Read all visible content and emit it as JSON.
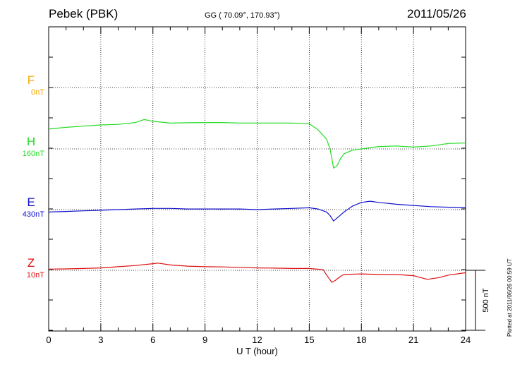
{
  "header": {
    "station": "Pebek (PBK)",
    "coords": "GG ( 70.09°, 170.93°)",
    "date": "2011/05/26"
  },
  "footer": {
    "plotted": "Plotted at 2011/06/26 00:59 UT"
  },
  "colors": {
    "F": "#f5a800",
    "H": "#22dd22",
    "E": "#1010cc",
    "Z": "#dd1010",
    "axis": "#000000"
  },
  "chart_data": {
    "type": "line",
    "xlabel": "U T (hour)",
    "xlim": [
      0,
      24
    ],
    "xticks": [
      0,
      3,
      6,
      9,
      12,
      15,
      18,
      21,
      24
    ],
    "scale_bar": {
      "label": "500 nT",
      "value_nT": 500
    },
    "grid": true,
    "series": [
      {
        "name": "F",
        "baseline_label": "0nT",
        "color": "#f5a800",
        "x": [],
        "y": []
      },
      {
        "name": "H",
        "baseline_label": "160nT",
        "color": "#22dd22",
        "x": [
          0,
          1,
          2,
          3,
          4,
          5,
          5.5,
          6,
          7,
          8,
          9,
          10,
          11,
          12,
          13,
          14,
          15,
          15.5,
          16,
          16.2,
          16.4,
          16.6,
          16.8,
          17,
          17.5,
          18,
          19,
          20,
          21,
          22,
          23,
          24
        ],
        "y": [
          165,
          180,
          190,
          200,
          205,
          220,
          245,
          230,
          215,
          218,
          220,
          220,
          215,
          215,
          215,
          215,
          210,
          160,
          80,
          0,
          -160,
          -140,
          -80,
          -40,
          -10,
          0,
          20,
          25,
          15,
          25,
          45,
          50
        ]
      },
      {
        "name": "E",
        "baseline_label": "430nT",
        "color": "#1010cc",
        "x": [
          0,
          1,
          2,
          3,
          4,
          5,
          6,
          7,
          8,
          9,
          10,
          11,
          12,
          13,
          14,
          15,
          15.5,
          16,
          16.2,
          16.4,
          16.6,
          17,
          17.5,
          18,
          18.5,
          19,
          20,
          21,
          22,
          23,
          24
        ],
        "y": [
          -20,
          -15,
          -10,
          -5,
          0,
          5,
          10,
          10,
          5,
          5,
          5,
          5,
          0,
          5,
          10,
          15,
          5,
          -20,
          -50,
          -95,
          -70,
          -20,
          30,
          60,
          70,
          60,
          45,
          35,
          25,
          20,
          15
        ]
      },
      {
        "name": "Z",
        "baseline_label": "10nT",
        "color": "#dd1010",
        "x": [
          0,
          1,
          2,
          3,
          4,
          5,
          6,
          6.3,
          7,
          8,
          9,
          10,
          11,
          12,
          13,
          14,
          15,
          15.8,
          16,
          16.3,
          16.5,
          16.8,
          17,
          18,
          19,
          20,
          21,
          21.8,
          22.5,
          23,
          24
        ],
        "y": [
          10,
          12,
          15,
          20,
          30,
          40,
          55,
          60,
          45,
          35,
          30,
          28,
          25,
          20,
          18,
          15,
          15,
          5,
          -40,
          -100,
          -85,
          -50,
          -35,
          -30,
          -35,
          -35,
          -45,
          -75,
          -60,
          -40,
          -20
        ]
      }
    ]
  }
}
